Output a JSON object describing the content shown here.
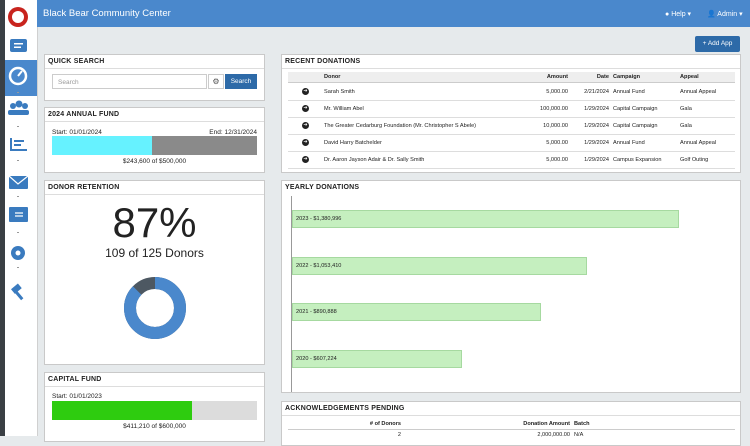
{
  "header": {
    "title": "Black Bear Community Center",
    "help": "Help",
    "admin": "Admin"
  },
  "add_app": "+ Add App",
  "quick_search": {
    "title": "QUICK SEARCH",
    "placeholder": "Search",
    "button": "Search"
  },
  "annual_fund": {
    "title": "2024 ANNUAL FUND",
    "start": "Start: 01/01/2024",
    "end": "End: 12/31/2024",
    "raised": 243600,
    "goal": 500000,
    "summary": "$243,600 of $500,000",
    "fill_color": "#66f2ff",
    "track_color": "#8a8a8a"
  },
  "donor_retention": {
    "title": "DONOR RETENTION",
    "percent": "87%",
    "summary": "109 of 125 Donors",
    "retained": 109,
    "total": 125,
    "fill_color": "#4a88cc",
    "track_color": "#4d5862"
  },
  "capital_fund": {
    "title": "CAPITAL FUND",
    "start": "Start: 01/01/2023",
    "raised": 411210,
    "goal": 600000,
    "summary": "$411,210 of $600,000",
    "fill_color": "#2ecc0f",
    "track_color": "#dcdcdc"
  },
  "recent_donations": {
    "title": "RECENT DONATIONS",
    "columns": [
      "Donor",
      "Amount",
      "Date",
      "Campaign",
      "Appeal"
    ],
    "rows": [
      [
        "Sarah Smith",
        "5,000.00",
        "2/21/2024",
        "Annual Fund",
        "Annual Appeal"
      ],
      [
        "Mr. William Abel",
        "100,000.00",
        "1/29/2024",
        "Capital Campaign",
        "Gala"
      ],
      [
        "The Greater Cedarburg Foundation (Mr. Christopher S Abele)",
        "10,000.00",
        "1/29/2024",
        "Capital Campaign",
        "Gala"
      ],
      [
        "David Harry Batchelder",
        "5,000.00",
        "1/29/2024",
        "Annual Fund",
        "Annual Appeal"
      ],
      [
        "Dr. Aaron Jayson Adair & Dr. Sally Smith",
        "5,000.00",
        "1/29/2024",
        "Campus Expansion",
        "Golf Outing"
      ]
    ]
  },
  "yearly_donations": {
    "title": "YEARLY DONATIONS",
    "xlim": [
      0,
      1600000
    ],
    "color": "#c5efbf",
    "values": [
      1380996,
      1053410,
      890888,
      607224
    ],
    "value_labels": [
      "2023 - $1,380,996",
      "2022 - $1,053,410",
      "2021 - $890,888",
      "2020 - $607,224"
    ]
  },
  "acknowledgements": {
    "title": "ACKNOWLEDGEMENTS PENDING",
    "columns": [
      "# of Donors",
      "Donation Amount",
      "Batch"
    ],
    "rows": [
      [
        "2",
        "2,000,000.00",
        "N/A"
      ]
    ]
  }
}
